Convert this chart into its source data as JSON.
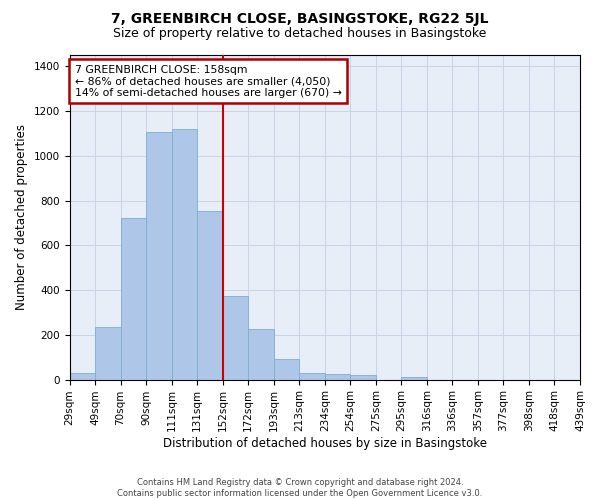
{
  "title": "7, GREENBIRCH CLOSE, BASINGSTOKE, RG22 5JL",
  "subtitle": "Size of property relative to detached houses in Basingstoke",
  "xlabel": "Distribution of detached houses by size in Basingstoke",
  "ylabel": "Number of detached properties",
  "footer_line1": "Contains HM Land Registry data © Crown copyright and database right 2024.",
  "footer_line2": "Contains public sector information licensed under the Open Government Licence v3.0.",
  "bar_values": [
    30,
    235,
    720,
    1105,
    1120,
    755,
    375,
    225,
    90,
    30,
    25,
    20,
    0,
    10,
    0,
    0,
    0,
    0,
    0,
    0
  ],
  "bin_labels": [
    "29sqm",
    "49sqm",
    "70sqm",
    "90sqm",
    "111sqm",
    "131sqm",
    "152sqm",
    "172sqm",
    "193sqm",
    "213sqm",
    "234sqm",
    "254sqm",
    "275sqm",
    "295sqm",
    "316sqm",
    "336sqm",
    "357sqm",
    "377sqm",
    "398sqm",
    "418sqm",
    "439sqm"
  ],
  "bar_color": "#aec6e8",
  "bar_edgecolor": "#7bafd4",
  "grid_color": "#c8d4e8",
  "background_color": "#e8eef8",
  "vline_color": "#cc0000",
  "vline_x": 6.0,
  "annotation_text": "7 GREENBIRCH CLOSE: 158sqm\n← 86% of detached houses are smaller (4,050)\n14% of semi-detached houses are larger (670) →",
  "annotation_box_edgecolor": "#aa0000",
  "ylim": [
    0,
    1450
  ],
  "yticks": [
    0,
    200,
    400,
    600,
    800,
    1000,
    1200,
    1400
  ],
  "title_fontsize": 10,
  "subtitle_fontsize": 9,
  "tick_fontsize": 7.5,
  "ylabel_fontsize": 8.5,
  "xlabel_fontsize": 8.5,
  "footer_fontsize": 6.0
}
